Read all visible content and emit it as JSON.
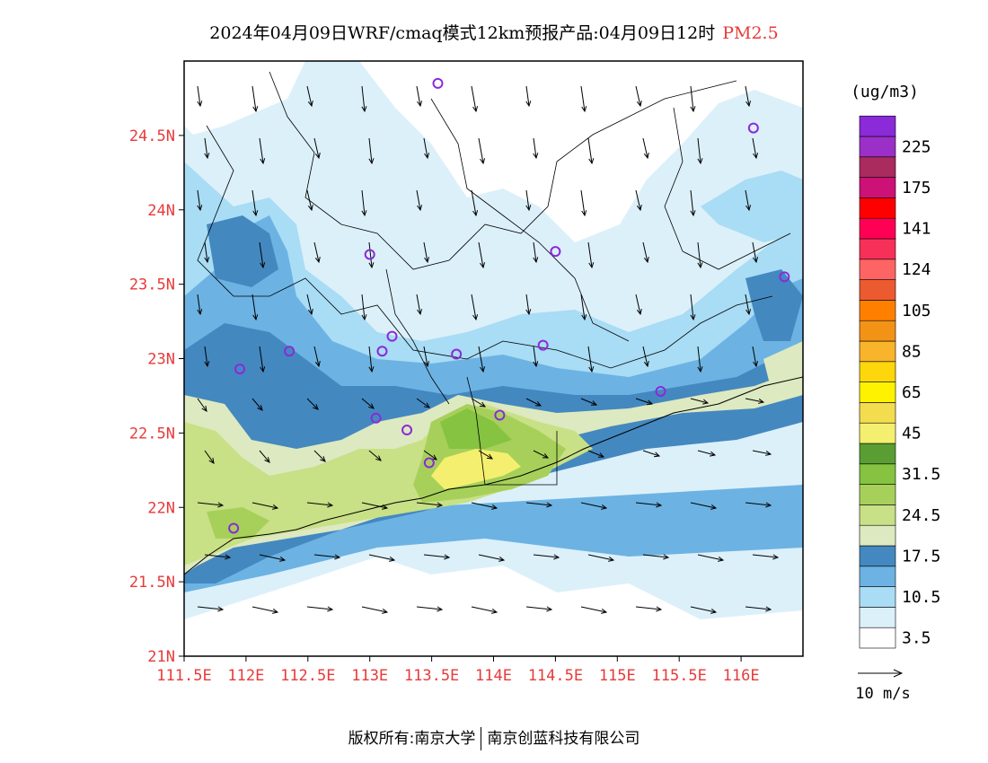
{
  "title": {
    "main": "2024年04月09日WRF/cmaq模式12km预报产品:04月09日12时",
    "variable": "PM2.5",
    "variable_color": "#e83a3a"
  },
  "map": {
    "lat_labels": [
      "24.5N",
      "24N",
      "23.5N",
      "23N",
      "22.5N",
      "22N",
      "21.5N",
      "21N"
    ],
    "lon_labels": [
      "111.5E",
      "112E",
      "112.5E",
      "113E",
      "113.5E",
      "114E",
      "114.5E",
      "115E",
      "115.5E",
      "116E"
    ],
    "axis_label_color": "#e83a3a",
    "lon_range": [
      111.5,
      116.5
    ],
    "lat_range": [
      21.0,
      25.0
    ]
  },
  "colorbar": {
    "unit": "(ug/m3)",
    "levels": [
      {
        "color": "#ffffff",
        "label": "3.5"
      },
      {
        "color": "#dcf0fa",
        "label": ""
      },
      {
        "color": "#a9dcf5",
        "label": "10.5"
      },
      {
        "color": "#6cb3e3",
        "label": ""
      },
      {
        "color": "#4488c0",
        "label": "17.5"
      },
      {
        "color": "#dde9c0",
        "label": ""
      },
      {
        "color": "#c8e086",
        "label": "24.5"
      },
      {
        "color": "#a7d05a",
        "label": ""
      },
      {
        "color": "#85c341",
        "label": "31.5"
      },
      {
        "color": "#5a9e33",
        "label": ""
      },
      {
        "color": "#f5ef6f",
        "label": "45"
      },
      {
        "color": "#f3dc4d",
        "label": ""
      },
      {
        "color": "#fff200",
        "label": "65"
      },
      {
        "color": "#fdd60c",
        "label": ""
      },
      {
        "color": "#f8b42b",
        "label": "85"
      },
      {
        "color": "#f39316",
        "label": ""
      },
      {
        "color": "#ff8000",
        "label": "105"
      },
      {
        "color": "#ec5a30",
        "label": ""
      },
      {
        "color": "#ff6464",
        "label": "124"
      },
      {
        "color": "#f7305a",
        "label": ""
      },
      {
        "color": "#ff0055",
        "label": "141"
      },
      {
        "color": "#ff0000",
        "label": ""
      },
      {
        "color": "#cc1177",
        "label": "175"
      },
      {
        "color": "#aa2b5e",
        "label": ""
      },
      {
        "color": "#9a30c8",
        "label": "225"
      },
      {
        "color": "#8a2ad8",
        "label": ""
      }
    ]
  },
  "wind_legend": {
    "label": "10 m/s"
  },
  "footer": {
    "left": "版权所有:南京大学",
    "right": "南京创蓝科技有限公司"
  },
  "stations": [
    {
      "lon": 113.55,
      "lat": 24.85
    },
    {
      "lon": 116.1,
      "lat": 24.55
    },
    {
      "lon": 113.0,
      "lat": 23.7
    },
    {
      "lon": 114.5,
      "lat": 23.72
    },
    {
      "lon": 116.35,
      "lat": 23.55
    },
    {
      "lon": 112.35,
      "lat": 23.05
    },
    {
      "lon": 111.95,
      "lat": 22.93
    },
    {
      "lon": 113.1,
      "lat": 23.05
    },
    {
      "lon": 113.18,
      "lat": 23.15
    },
    {
      "lon": 113.7,
      "lat": 23.03
    },
    {
      "lon": 114.4,
      "lat": 23.09
    },
    {
      "lon": 115.35,
      "lat": 22.78
    },
    {
      "lon": 113.05,
      "lat": 22.6
    },
    {
      "lon": 113.3,
      "lat": 22.52
    },
    {
      "lon": 114.05,
      "lat": 22.62
    },
    {
      "lon": 113.48,
      "lat": 22.3
    },
    {
      "lon": 111.9,
      "lat": 21.86
    }
  ]
}
